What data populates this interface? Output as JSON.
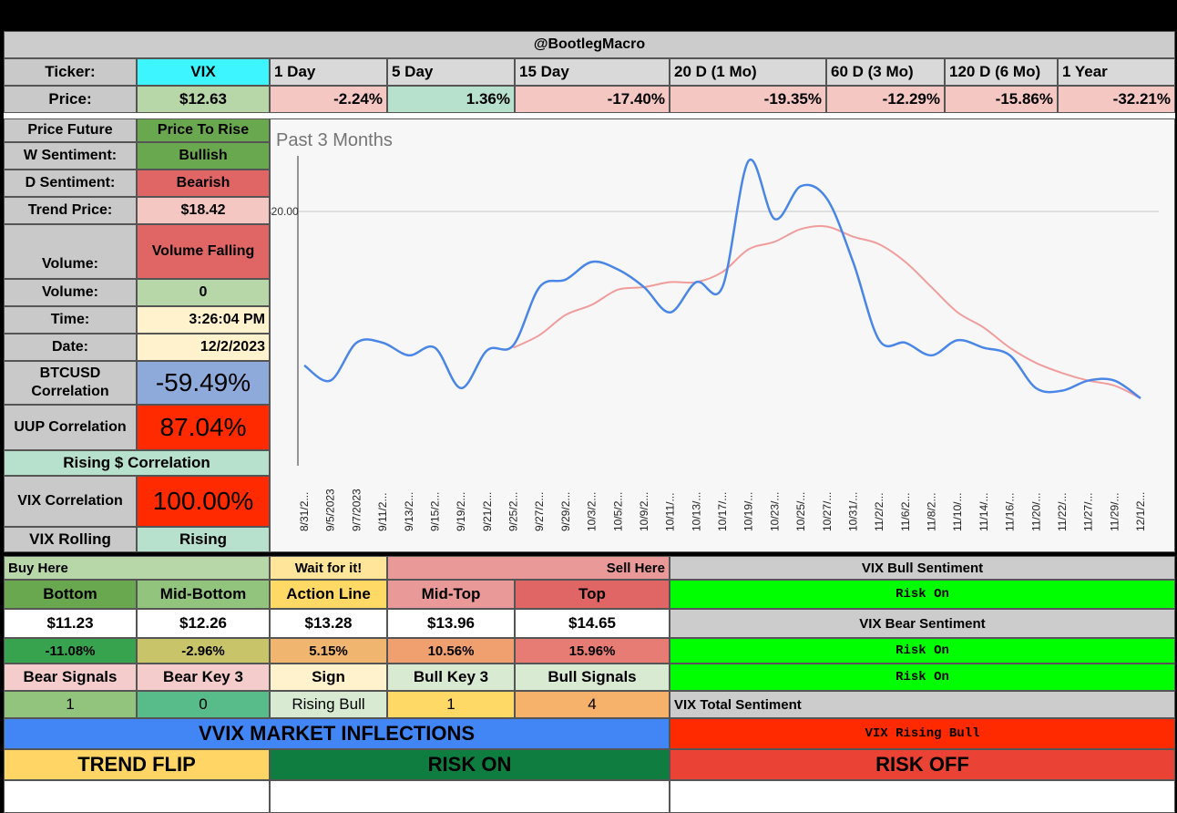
{
  "header": {
    "title": "@BootlegMacro"
  },
  "ticker_row": {
    "label": "Ticker:",
    "ticker": "VIX",
    "periods": [
      "1 Day",
      "5 Day",
      "15 Day",
      "20 D (1 Mo)",
      "60 D (3 Mo)",
      "120 D (6 Mo)",
      "1 Year"
    ]
  },
  "price_row": {
    "label": "Price:",
    "price": "$12.63",
    "changes": [
      "-2.24%",
      "1.36%",
      "-17.40%",
      "-19.35%",
      "-12.29%",
      "-15.86%",
      "-32.21%"
    ]
  },
  "stats": {
    "price_future_label": "Price Future",
    "price_future": "Price To Rise",
    "w_sentiment_label": "W Sentiment:",
    "w_sentiment": "Bullish",
    "d_sentiment_label": "D Sentiment:",
    "d_sentiment": "Bearish",
    "trend_price_label": "Trend Price:",
    "trend_price": "$18.42",
    "volume_trend_label": "Volume:",
    "volume_trend": "Volume Falling",
    "volume_label": "Volume:",
    "volume": "0",
    "time_label": "Time:",
    "time": "3:26:04 PM",
    "date_label": "Date:",
    "date": "12/2/2023",
    "btc_corr_label": "BTCUSD Correlation",
    "btc_corr": "-59.49%",
    "uup_corr_label": "UUP Correlation",
    "uup_corr": "87.04%",
    "rising_corr_label": "Rising $ Correlation",
    "vix_corr_label": "VIX Correlation",
    "vix_corr": "100.00%",
    "vix_rolling_label": "VIX Rolling",
    "vix_rolling": "Rising"
  },
  "levels": {
    "buy_here": "Buy Here",
    "wait": "Wait for it!",
    "sell_here": "Sell Here",
    "names": [
      "Bottom",
      "Mid-Bottom",
      "Action Line",
      "Mid-Top",
      "Top"
    ],
    "prices": [
      "$11.23",
      "$12.26",
      "$13.28",
      "$13.96",
      "$14.65"
    ],
    "pcts": [
      "-11.08%",
      "-2.96%",
      "5.15%",
      "10.56%",
      "15.96%"
    ],
    "signal_names": [
      "Bear Signals",
      "Bear Key 3",
      "Sign",
      "Bull Key 3",
      "Bull Signals"
    ],
    "signal_values": [
      "1",
      "0",
      "Rising Bull",
      "1",
      "4"
    ]
  },
  "sentiment": {
    "bull_title": "VIX Bull Sentiment",
    "bull_value": "Risk On",
    "bear_title": "VIX Bear Sentiment",
    "bear_value1": "Risk On",
    "bear_value2": "Risk On",
    "total_title": "VIX Total Sentiment",
    "total_value": "VIX Rising Bull"
  },
  "footer": {
    "inflections": "VVIX MARKET INFLECTIONS",
    "trend_flip": "TREND FLIP",
    "risk_on": "RISK ON",
    "risk_off": "RISK OFF"
  },
  "colors": {
    "price_line": "#4a86e8",
    "trend_line": "#f19c9c",
    "risk_on_green": "#00ff00",
    "risk_off_red": "#ff2a00",
    "header_blue": "#4285f4"
  },
  "chart_data": {
    "type": "line",
    "title": "Past 3 Months",
    "y_tick_label": "$20.00",
    "y_tick_value": 20,
    "ylim": [
      10,
      22.2
    ],
    "x": [
      "8/31/2...",
      "9/5/2023",
      "9/7/2023",
      "9/11/2...",
      "9/13/2...",
      "9/15/2...",
      "9/19/2...",
      "9/21/2...",
      "9/25/2...",
      "9/27/2...",
      "9/29/2...",
      "10/3/2...",
      "10/5/2...",
      "10/9/2...",
      "10/11/...",
      "10/13/...",
      "10/17/...",
      "10/19/...",
      "10/23/...",
      "10/25/...",
      "10/27/...",
      "10/31/...",
      "11/2/2...",
      "11/6/2...",
      "11/8/2...",
      "11/10/...",
      "11/14/...",
      "11/16/...",
      "11/20/...",
      "11/22/...",
      "11/27/...",
      "11/29/...",
      "12/1/2..."
    ],
    "series": [
      {
        "values": [
          13.9,
          13.3,
          14.8,
          14.8,
          14.3,
          14.6,
          13.0,
          14.5,
          14.7,
          17.0,
          17.3,
          18.0,
          17.7,
          17.0,
          16.0,
          17.2,
          17.0,
          22.0,
          19.7,
          21.0,
          20.5,
          18.0,
          14.9,
          14.8,
          14.3,
          14.9,
          14.6,
          14.3,
          13.0,
          12.9,
          13.3,
          13.3,
          12.6
        ]
      },
      {
        "values": [
          null,
          null,
          null,
          null,
          null,
          null,
          null,
          null,
          14.6,
          15.1,
          15.9,
          16.3,
          16.9,
          17.0,
          17.2,
          17.2,
          17.6,
          18.5,
          18.8,
          19.3,
          19.4,
          19.0,
          18.7,
          18.0,
          17.0,
          16.0,
          15.4,
          14.6,
          14.0,
          13.6,
          13.3,
          13.1,
          12.6
        ]
      }
    ]
  }
}
